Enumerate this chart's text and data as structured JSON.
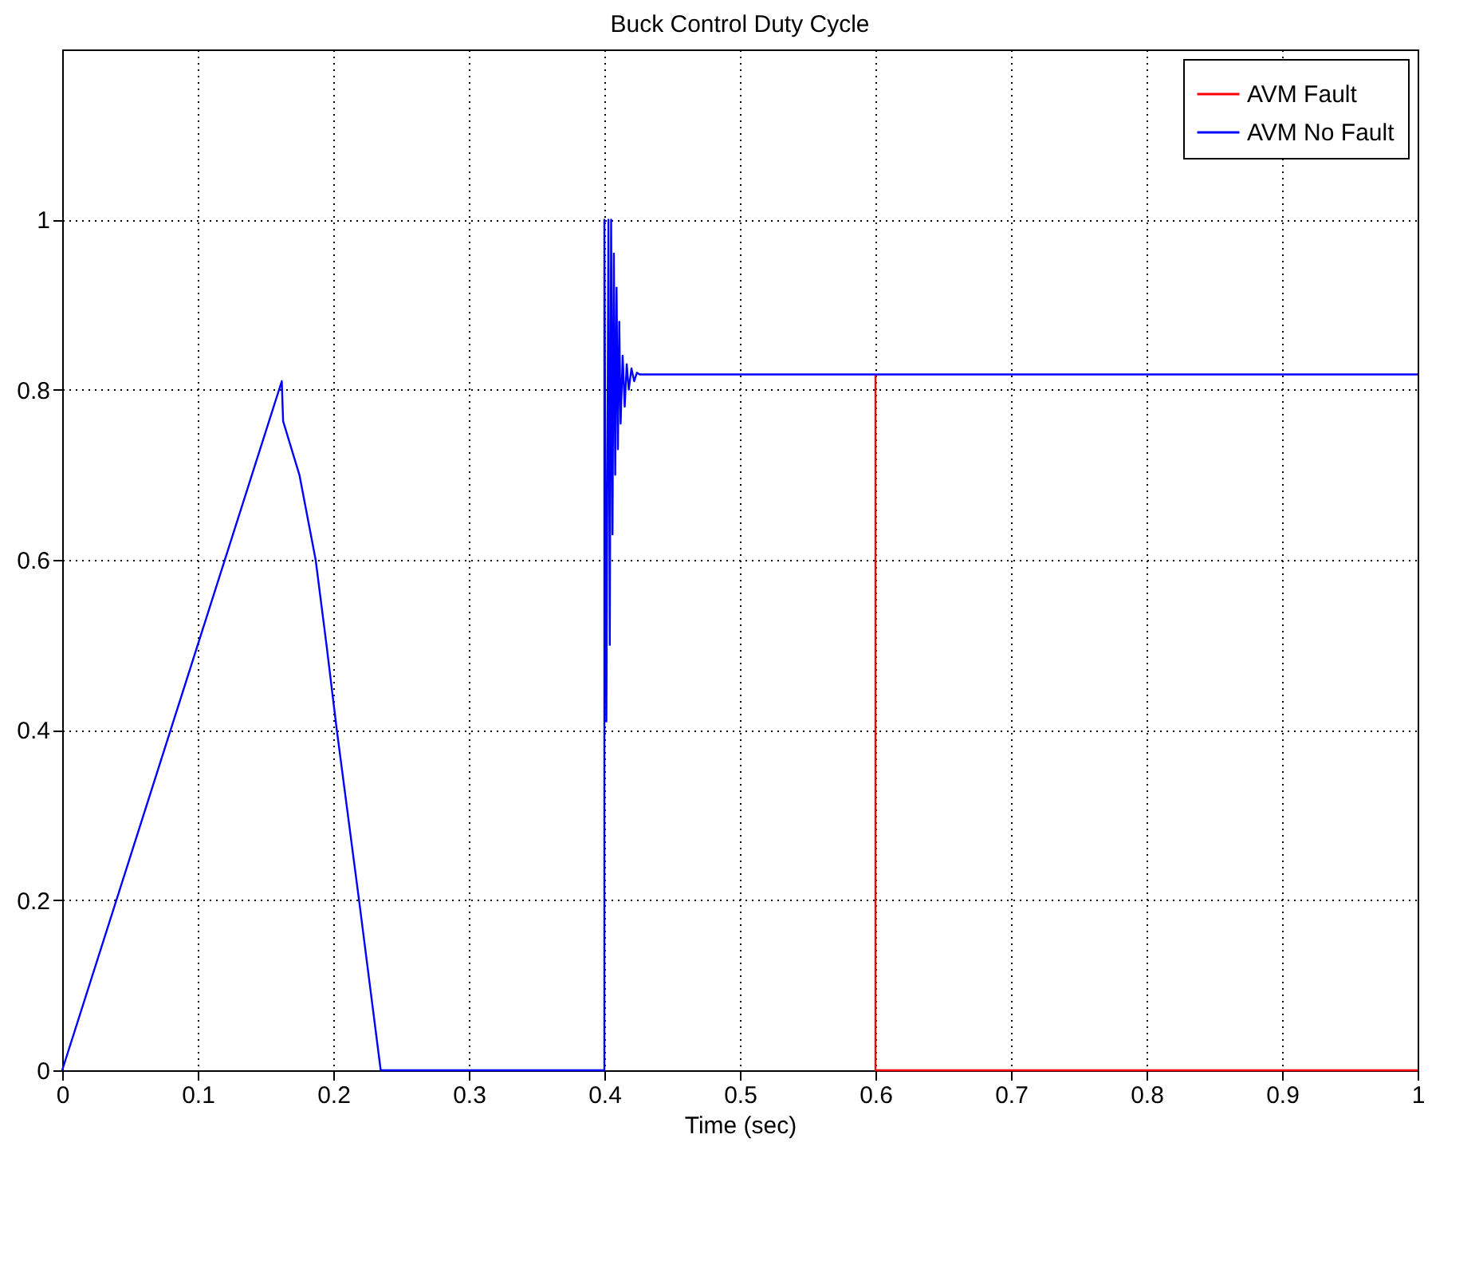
{
  "chart_data": {
    "type": "line",
    "title": "Buck Control Duty Cycle",
    "xlabel": "Time (sec)",
    "xlim": [
      0,
      1
    ],
    "xticks": [
      0,
      0.1,
      0.2,
      0.3,
      0.4,
      0.5,
      0.6,
      0.7,
      0.8,
      0.9,
      1
    ],
    "ylim": [
      0,
      1.2
    ],
    "yticks": [
      0,
      0.2,
      0.4,
      0.6,
      0.8,
      1
    ],
    "grid": true,
    "legend": "top right",
    "line_style": "solid",
    "marker": "none",
    "series": [
      {
        "name": "AVM Fault",
        "color": "#ff0000",
        "x": [
          0.6,
          0.6,
          1
        ],
        "values": [
          0.818,
          0,
          0
        ]
      },
      {
        "name": "AVM No Fault",
        "color": "#0000ff",
        "x": [
          0,
          0.162,
          0.163,
          0.175,
          0.187,
          0.195,
          0.2026,
          0.219,
          0.235,
          0.4,
          0.4,
          0.4015,
          0.403,
          0.404,
          0.405,
          0.406,
          0.407,
          0.408,
          0.409,
          0.41,
          0.411,
          0.412,
          0.4135,
          0.415,
          0.4165,
          0.418,
          0.42,
          0.422,
          0.424,
          0.426,
          1
        ],
        "values": [
          0,
          0.81,
          0.763,
          0.7,
          0.6,
          0.5,
          0.4,
          0.2,
          0,
          0,
          1,
          0.41,
          1,
          0.5,
          1,
          0.63,
          0.96,
          0.7,
          0.92,
          0.73,
          0.88,
          0.76,
          0.84,
          0.78,
          0.83,
          0.8,
          0.825,
          0.81,
          0.82,
          0.818,
          0.818
        ]
      }
    ]
  }
}
